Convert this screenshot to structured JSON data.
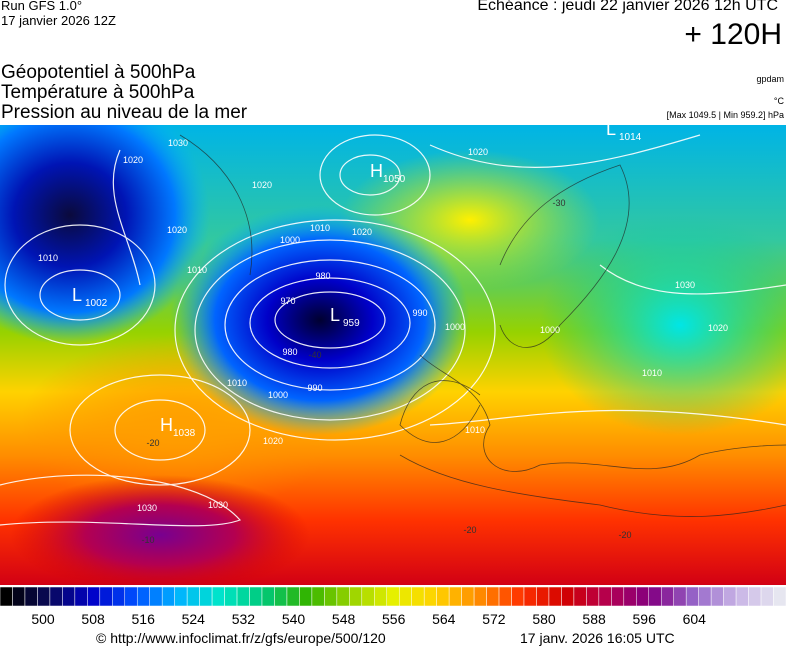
{
  "header": {
    "model": "Run GFS 1.0°",
    "run": "17 janvier 2026 12Z",
    "valid": "Echéance : jeudi 22 janvier 2026 12h UTC",
    "lead": "+ 120H",
    "fields": [
      "Géopotentiel à 500hPa",
      "Température à 500hPa",
      "Pression au niveau de la mer"
    ],
    "unit_geopotential": "gpdam",
    "unit_temperature": "°C",
    "extremes": "[Max 1049.5 | Min 959.2] hPa"
  },
  "map": {
    "centers": [
      {
        "letter": "H",
        "value": "1050"
      },
      {
        "letter": "L",
        "value": "959"
      },
      {
        "letter": "L",
        "value": "1002"
      },
      {
        "letter": "H",
        "value": "1038"
      },
      {
        "letter": "L",
        "value": "1014"
      }
    ],
    "isobar_labels": [
      "1030",
      "1020",
      "1020",
      "1010",
      "1010",
      "1020",
      "1000",
      "1010",
      "1020",
      "980",
      "970",
      "990",
      "1000",
      "980",
      "990",
      "1000",
      "1010",
      "1020",
      "1010",
      "1020",
      "1030",
      "1020",
      "1010",
      "1030",
      "1030",
      "1000"
    ],
    "temperature_labels": [
      "-30",
      "-40",
      "-20",
      "-10",
      "-20",
      "-20"
    ]
  },
  "colorbar": {
    "labels": [
      500,
      508,
      516,
      524,
      532,
      540,
      548,
      556,
      564,
      572,
      580,
      588,
      596,
      604
    ],
    "palette": [
      "#000000",
      "#0a0a5a",
      "#0000c8",
      "#0050ff",
      "#00b4ff",
      "#00e6c8",
      "#00c878",
      "#32b400",
      "#96d200",
      "#e6f000",
      "#ffd200",
      "#ff8c00",
      "#ff3200",
      "#d20000",
      "#b40050",
      "#820082",
      "#9664c8",
      "#c8b4e6",
      "#e6e6f0"
    ]
  },
  "footer": {
    "url": "© http://www.infoclimat.fr/z/gfs/europe/500/120",
    "stamp": "17 janv. 2026 16:05 UTC"
  }
}
